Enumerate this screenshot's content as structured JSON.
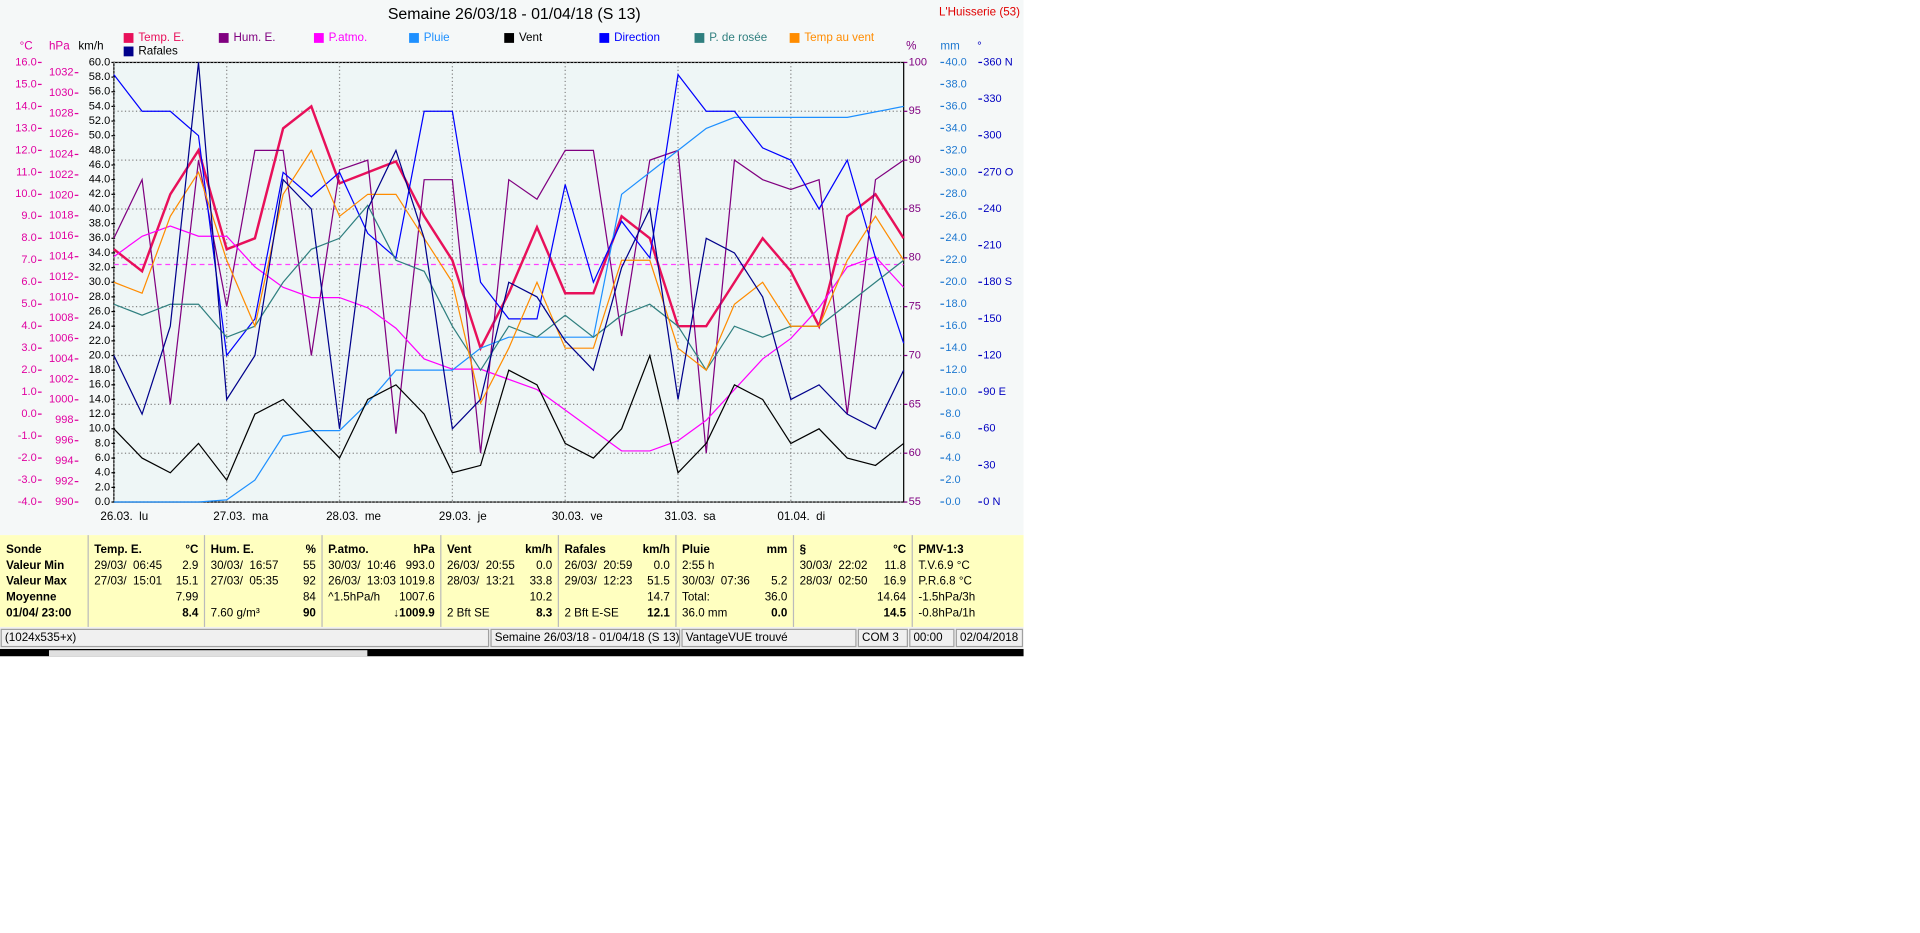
{
  "chart_data": {
    "type": "line",
    "title": "Semaine 26/03/18 - 01/04/18 (S 13)",
    "station": "L'Huisserie (53)",
    "x": [
      0,
      6,
      12,
      18,
      24,
      30,
      36,
      42,
      48,
      54,
      60,
      66,
      72,
      78,
      84,
      90,
      96,
      102,
      108,
      114,
      120,
      126,
      132,
      138,
      144,
      150,
      156,
      162,
      168
    ],
    "xlim": [
      0,
      168
    ],
    "xticks": [
      {
        "value": 0,
        "label": "26.03.  lu"
      },
      {
        "value": 24,
        "label": "27.03.  ma"
      },
      {
        "value": 48,
        "label": "28.03.  me"
      },
      {
        "value": 72,
        "label": "29.03.  je"
      },
      {
        "value": 96,
        "label": "30.03.  ve"
      },
      {
        "value": 120,
        "label": "31.03.  sa"
      },
      {
        "value": 144,
        "label": "01.04.  di"
      }
    ],
    "grid": true,
    "grid_axis": 3,
    "axes": [
      {
        "unit": "°C",
        "color": "#e000a0",
        "lim": [
          -4,
          16
        ],
        "ticks": [
          {
            "value": -4,
            "label": "-4.0"
          },
          {
            "value": -3,
            "label": "-3.0"
          },
          {
            "value": -2,
            "label": "-2.0"
          },
          {
            "value": -1,
            "label": "-1.0"
          },
          {
            "value": 0,
            "label": "0.0"
          },
          {
            "value": 1,
            "label": "1.0"
          },
          {
            "value": 2,
            "label": "2.0"
          },
          {
            "value": 3,
            "label": "3.0"
          },
          {
            "value": 4,
            "label": "4.0"
          },
          {
            "value": 5,
            "label": "5.0"
          },
          {
            "value": 6,
            "label": "6.0"
          },
          {
            "value": 7,
            "label": "7.0"
          },
          {
            "value": 8,
            "label": "8.0"
          },
          {
            "value": 9,
            "label": "9.0"
          },
          {
            "value": 10,
            "label": "10.0"
          },
          {
            "value": 11,
            "label": "11.0"
          },
          {
            "value": 12,
            "label": "12.0"
          },
          {
            "value": 13,
            "label": "13.0"
          },
          {
            "value": 14,
            "label": "14.0"
          },
          {
            "value": 15,
            "label": "15.0"
          },
          {
            "value": 16,
            "label": "16.0"
          }
        ]
      },
      {
        "unit": "hPa",
        "color": "#e000a0",
        "lim": [
          990,
          1033
        ],
        "ticks": [
          990,
          992,
          994,
          996,
          998,
          1000,
          1002,
          1004,
          1006,
          1008,
          1010,
          1012,
          1014,
          1016,
          1018,
          1020,
          1022,
          1024,
          1026,
          1028,
          1030,
          1032
        ]
      },
      {
        "unit": "km/h",
        "color": "#000000",
        "lim": [
          0,
          60
        ],
        "ticks": [
          {
            "value": 0,
            "label": "0.0"
          },
          {
            "value": 2,
            "label": "2.0"
          },
          {
            "value": 4,
            "label": "4.0"
          },
          {
            "value": 6,
            "label": "6.0"
          },
          {
            "value": 8,
            "label": "8.0"
          },
          {
            "value": 10,
            "label": "10.0"
          },
          {
            "value": 12,
            "label": "12.0"
          },
          {
            "value": 14,
            "label": "14.0"
          },
          {
            "value": 16,
            "label": "16.0"
          },
          {
            "value": 18,
            "label": "18.0"
          },
          {
            "value": 20,
            "label": "20.0"
          },
          {
            "value": 22,
            "label": "22.0"
          },
          {
            "value": 24,
            "label": "24.0"
          },
          {
            "value": 26,
            "label": "26.0"
          },
          {
            "value": 28,
            "label": "28.0"
          },
          {
            "value": 30,
            "label": "30.0"
          },
          {
            "value": 32,
            "label": "32.0"
          },
          {
            "value": 34,
            "label": "34.0"
          },
          {
            "value": 36,
            "label": "36.0"
          },
          {
            "value": 38,
            "label": "38.0"
          },
          {
            "value": 40,
            "label": "40.0"
          },
          {
            "value": 42,
            "label": "42.0"
          },
          {
            "value": 44,
            "label": "44.0"
          },
          {
            "value": 46,
            "label": "46.0"
          },
          {
            "value": 48,
            "label": "48.0"
          },
          {
            "value": 50,
            "label": "50.0"
          },
          {
            "value": 52,
            "label": "52.0"
          },
          {
            "value": 54,
            "label": "54.0"
          },
          {
            "value": 56,
            "label": "56.0"
          },
          {
            "value": 58,
            "label": "58.0"
          },
          {
            "value": 60,
            "label": "60.0"
          }
        ]
      },
      {
        "unit": "%",
        "color": "#800080",
        "lim": [
          55,
          100
        ],
        "ticks": [
          55,
          60,
          65,
          70,
          75,
          80,
          85,
          90,
          95,
          100
        ]
      },
      {
        "unit": "mm",
        "color": "#1e78d0",
        "lim": [
          0,
          40
        ],
        "ticks": [
          {
            "value": 0,
            "label": "0.0"
          },
          {
            "value": 2,
            "label": "2.0"
          },
          {
            "value": 4,
            "label": "4.0"
          },
          {
            "value": 6,
            "label": "6.0"
          },
          {
            "value": 8,
            "label": "8.0"
          },
          {
            "value": 10,
            "label": "10.0"
          },
          {
            "value": 12,
            "label": "12.0"
          },
          {
            "value": 14,
            "label": "14.0"
          },
          {
            "value": 16,
            "label": "16.0"
          },
          {
            "value": 18,
            "label": "18.0"
          },
          {
            "value": 20,
            "label": "20.0"
          },
          {
            "value": 22,
            "label": "22.0"
          },
          {
            "value": 24,
            "label": "24.0"
          },
          {
            "value": 26,
            "label": "26.0"
          },
          {
            "value": 28,
            "label": "28.0"
          },
          {
            "value": 30,
            "label": "30.0"
          },
          {
            "value": 32,
            "label": "32.0"
          },
          {
            "value": 34,
            "label": "34.0"
          },
          {
            "value": 36,
            "label": "36.0"
          },
          {
            "value": 38,
            "label": "38.0"
          },
          {
            "value": 40,
            "label": "40.0"
          }
        ]
      },
      {
        "unit": "°",
        "color": "#0000c0",
        "lim": [
          0,
          360
        ],
        "ticks": [
          {
            "value": 0,
            "label": "0   N"
          },
          30,
          60,
          {
            "value": 90,
            "label": "90  E"
          },
          120,
          150,
          {
            "value": 180,
            "label": "180 S"
          },
          210,
          240,
          {
            "value": 270,
            "label": "270 O"
          },
          300,
          330,
          {
            "value": 360,
            "label": "360 N"
          }
        ]
      }
    ],
    "series": [
      {
        "name": "Temp. E.",
        "color": "#e8105a",
        "axis": 0,
        "width": 2,
        "values": [
          7.5,
          6.5,
          10,
          12,
          7.5,
          8,
          13,
          14,
          10.5,
          11,
          11.5,
          9,
          7,
          3,
          5.5,
          8.5,
          5.5,
          5.5,
          9,
          8,
          4,
          4,
          6,
          8,
          6.5,
          4,
          9,
          10,
          8
        ]
      },
      {
        "name": "Hum. E.",
        "color": "#800080",
        "axis": 3,
        "values": [
          82,
          88,
          65,
          90,
          75,
          91,
          91,
          70,
          89,
          90,
          62,
          88,
          88,
          60,
          88,
          86,
          91,
          91,
          72,
          90,
          91,
          60,
          90,
          88,
          87,
          88,
          64,
          88,
          90
        ]
      },
      {
        "name": "P.atmo.",
        "color": "#ff00ff",
        "axis": 1,
        "values": [
          1014,
          1016,
          1017,
          1016,
          1016,
          1013,
          1011,
          1010,
          1010,
          1009,
          1007,
          1004,
          1003,
          1003,
          1002,
          1001,
          999,
          997,
          995,
          995,
          996,
          998,
          1001,
          1004,
          1006,
          1009,
          1013,
          1014,
          1011
        ]
      },
      {
        "name": "Pluie",
        "color": "#1e90ff",
        "axis": 4,
        "values": [
          0,
          0,
          0,
          0,
          0.2,
          2,
          6,
          6.5,
          6.5,
          9,
          12,
          12,
          12,
          14,
          15,
          15,
          15,
          15,
          28,
          30,
          32,
          34,
          35,
          35,
          35,
          35,
          35,
          35.5,
          36
        ]
      },
      {
        "name": "Vent",
        "color": "#000000",
        "axis": 2,
        "values": [
          10,
          6,
          4,
          8,
          3,
          12,
          14,
          10,
          6,
          14,
          16,
          12,
          4,
          5,
          18,
          16,
          8,
          6,
          10,
          20,
          4,
          8,
          16,
          14,
          8,
          10,
          6,
          5,
          8
        ]
      },
      {
        "name": "Direction",
        "color": "#0000ff",
        "axis": 5,
        "values": [
          350,
          320,
          320,
          300,
          120,
          150,
          270,
          250,
          270,
          220,
          200,
          320,
          320,
          180,
          150,
          150,
          260,
          180,
          230,
          200,
          350,
          320,
          320,
          290,
          280,
          240,
          280,
          200,
          130
        ]
      },
      {
        "name": "P. de rosée",
        "color": "#2f7f7f",
        "axis": 0,
        "values": [
          5,
          4.5,
          5,
          5,
          3.5,
          4,
          6,
          7.5,
          8,
          9.5,
          7,
          6.5,
          4,
          2,
          4,
          3.5,
          4.5,
          3.5,
          4.5,
          5,
          4,
          2,
          4,
          3.5,
          4,
          4,
          5,
          6,
          7
        ]
      },
      {
        "name": "Temp au vent",
        "color": "#ff8c00",
        "axis": 0,
        "values": [
          6,
          5.5,
          9,
          11,
          7,
          4,
          10,
          12,
          9,
          10,
          10,
          8,
          6,
          0.5,
          3,
          6,
          3,
          3,
          7,
          7,
          3,
          2,
          5,
          6,
          4,
          4,
          7,
          9,
          7
        ]
      },
      {
        "name": "Rafales",
        "color": "#00008b",
        "axis": 2,
        "values": [
          20,
          12,
          24,
          60,
          14,
          20,
          44,
          40,
          10,
          40,
          48,
          36,
          10,
          14,
          30,
          28,
          22,
          18,
          32,
          40,
          14,
          36,
          34,
          28,
          14,
          16,
          12,
          10,
          18
        ]
      }
    ]
  },
  "panel": {
    "columns": [
      {
        "cells": [
          {
            "l": "Sonde"
          },
          {
            "l": "Valeur Min"
          },
          {
            "l": "Valeur Max"
          },
          {
            "l": "Moyenne"
          },
          {
            "l": "01/04/ 23:00"
          }
        ]
      },
      {
        "cells": [
          {
            "l": "Temp. E.",
            "r": "°C"
          },
          {
            "l": "29/03/  06:45",
            "r": "2.9"
          },
          {
            "l": "27/03/  15:01",
            "r": "15.1"
          },
          {
            "r": "7.99"
          },
          {
            "r": "8.4"
          }
        ]
      },
      {
        "cells": [
          {
            "l": "Hum. E.",
            "r": "%"
          },
          {
            "l": "30/03/  16:57",
            "r": "55"
          },
          {
            "l": "27/03/  05:35",
            "r": "92"
          },
          {
            "r": "84"
          },
          {
            "l": "7.60 g/m³",
            "r": "90"
          }
        ]
      },
      {
        "cells": [
          {
            "l": "P.atmo.",
            "r": "hPa"
          },
          {
            "l": "30/03/  10:46",
            "r": "993.0"
          },
          {
            "l": "26/03/  13:03",
            "r": "1019.8"
          },
          {
            "l": "^1.5hPa/h",
            "r": "1007.6"
          },
          {
            "r": "↓1009.9"
          }
        ]
      },
      {
        "cells": [
          {
            "l": "Vent",
            "r": "km/h"
          },
          {
            "l": "26/03/  20:55",
            "r": "0.0"
          },
          {
            "l": "28/03/  13:21",
            "r": "33.8"
          },
          {
            "r": "10.2"
          },
          {
            "l": "2 Bft SE",
            "r": "8.3"
          }
        ]
      },
      {
        "cells": [
          {
            "l": "Rafales",
            "r": "km/h"
          },
          {
            "l": "26/03/  20:59",
            "r": "0.0"
          },
          {
            "l": "29/03/  12:23",
            "r": "51.5"
          },
          {
            "r": "14.7"
          },
          {
            "l": "2 Bft E-SE",
            "r": "12.1"
          }
        ]
      },
      {
        "cells": [
          {
            "l": "Pluie",
            "r": "mm"
          },
          {
            "l": "2:55 h"
          },
          {
            "l": "30/03/  07:36",
            "r": "5.2"
          },
          {
            "l": "Total:",
            "r": "36.0"
          },
          {
            "l": "36.0 mm",
            "r": "0.0"
          }
        ]
      },
      {
        "cells": [
          {
            "l": "§",
            "r": "°C"
          },
          {
            "l": "30/03/  22:02",
            "r": "11.8"
          },
          {
            "l": "28/03/  02:50",
            "r": "16.9"
          },
          {
            "r": "14.64"
          },
          {
            "r": "14.5"
          }
        ]
      },
      {
        "cells": [
          {
            "l": "PMV-1:3"
          },
          {
            "l": "T.V.6.9 °C"
          },
          {
            "l": "P.R.6.8 °C"
          },
          {
            "l": "-1.5hPa/3h"
          },
          {
            "l": "-0.8hPa/1h"
          }
        ]
      }
    ]
  },
  "status": [
    "(1024x535+x)",
    "Semaine 26/03/18 - 01/04/18 (S 13)",
    "VantageVUE trouvé",
    "COM 3",
    "00:00",
    "02/04/2018"
  ]
}
